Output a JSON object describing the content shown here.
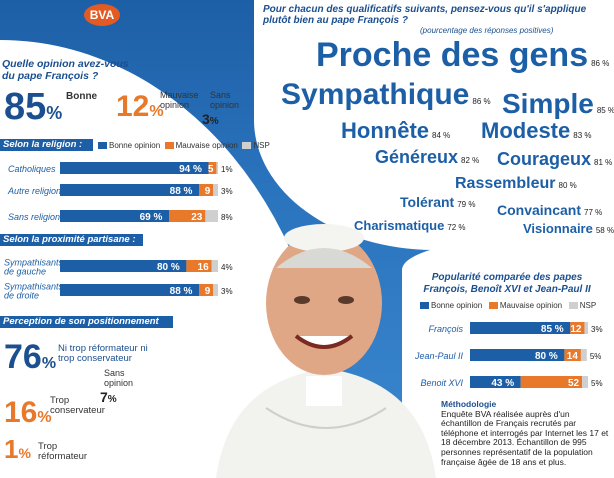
{
  "brand": "BVA",
  "question_main": "Pour chacun des qualificatifs suivants, pensez-vous qu'il s'applique plutôt bien au pape François ?",
  "question_note": "(pourcentage des réponses positives)",
  "opinion": {
    "title": "Quelle opinion avez-vous du pape François ?",
    "good_value": "85",
    "good_label": "Bonne",
    "bad_value": "12",
    "bad_label": "Mauvaise opinion",
    "none_value": "3",
    "none_label": "Sans opinion",
    "pct": "%"
  },
  "legend": {
    "good": "Bonne opinion",
    "bad": "Mauvaise opinion",
    "nsp": "NSP"
  },
  "colors": {
    "good": "#1d5fa6",
    "bad": "#e8782a",
    "nsp": "#cfcfcf",
    "navy": "#1b4f8f"
  },
  "religion_header": "Selon la religion :",
  "partisan_header": "Selon la proximité partisane :",
  "positioning": {
    "header": "Perception de son positionnement",
    "v1": "76",
    "l1": "Ni trop réformateur ni trop conservateur",
    "v2": "16",
    "l2": "Trop conservateur",
    "v3": "1",
    "l3": "Trop réformateur",
    "v4": "7",
    "l4": "Sans opinion"
  },
  "compare_title": "Popularité comparée des papes François, Benoît XVI et Jean-Paul II",
  "methodology": {
    "title": "Méthodologie",
    "text": "Enquête BVA réalisée auprès d'un échantillon de Français recrutés par téléphone et interrogés par Internet les 17 et 18 décembre 2013. Échantillon de 995 personnes représentatif de la population française âgée de 18 ans et plus."
  },
  "chart_data": [
    {
      "type": "bar",
      "title": "Selon la religion :",
      "categories": [
        "Catholiques",
        "Autre religion",
        "Sans religion"
      ],
      "series": [
        {
          "name": "Bonne opinion",
          "values": [
            94,
            88,
            69
          ]
        },
        {
          "name": "Mauvaise opinion",
          "values": [
            5,
            9,
            23
          ]
        },
        {
          "name": "NSP",
          "values": [
            1,
            3,
            8
          ]
        }
      ]
    },
    {
      "type": "bar",
      "title": "Selon la proximité partisane :",
      "categories": [
        "Sympathisants de gauche",
        "Sympathisants de droite"
      ],
      "series": [
        {
          "name": "Bonne opinion",
          "values": [
            80,
            88
          ]
        },
        {
          "name": "Mauvaise opinion",
          "values": [
            16,
            9
          ]
        },
        {
          "name": "NSP",
          "values": [
            4,
            3
          ]
        }
      ]
    },
    {
      "type": "bar",
      "title": "Popularité comparée des papes François, Benoît XVI et Jean-Paul II",
      "categories": [
        "François",
        "Jean-Paul II",
        "Benoit XVI"
      ],
      "series": [
        {
          "name": "Bonne opinion",
          "values": [
            85,
            80,
            43
          ]
        },
        {
          "name": "Mauvaise opinion",
          "values": [
            12,
            14,
            52
          ]
        },
        {
          "name": "NSP",
          "values": [
            3,
            5,
            5
          ]
        }
      ]
    },
    {
      "type": "table",
      "title": "Qualificatifs (pourcentage des réponses positives)",
      "rows": [
        [
          "Proche des gens",
          86
        ],
        [
          "Sympathique",
          86
        ],
        [
          "Simple",
          85
        ],
        [
          "Honnête",
          84
        ],
        [
          "Modeste",
          83
        ],
        [
          "Généreux",
          82
        ],
        [
          "Courageux",
          81
        ],
        [
          "Rassembleur",
          80
        ],
        [
          "Tolérant",
          79
        ],
        [
          "Convaincant",
          77
        ],
        [
          "Charismatique",
          72
        ],
        [
          "Visionnaire",
          58
        ]
      ]
    }
  ]
}
